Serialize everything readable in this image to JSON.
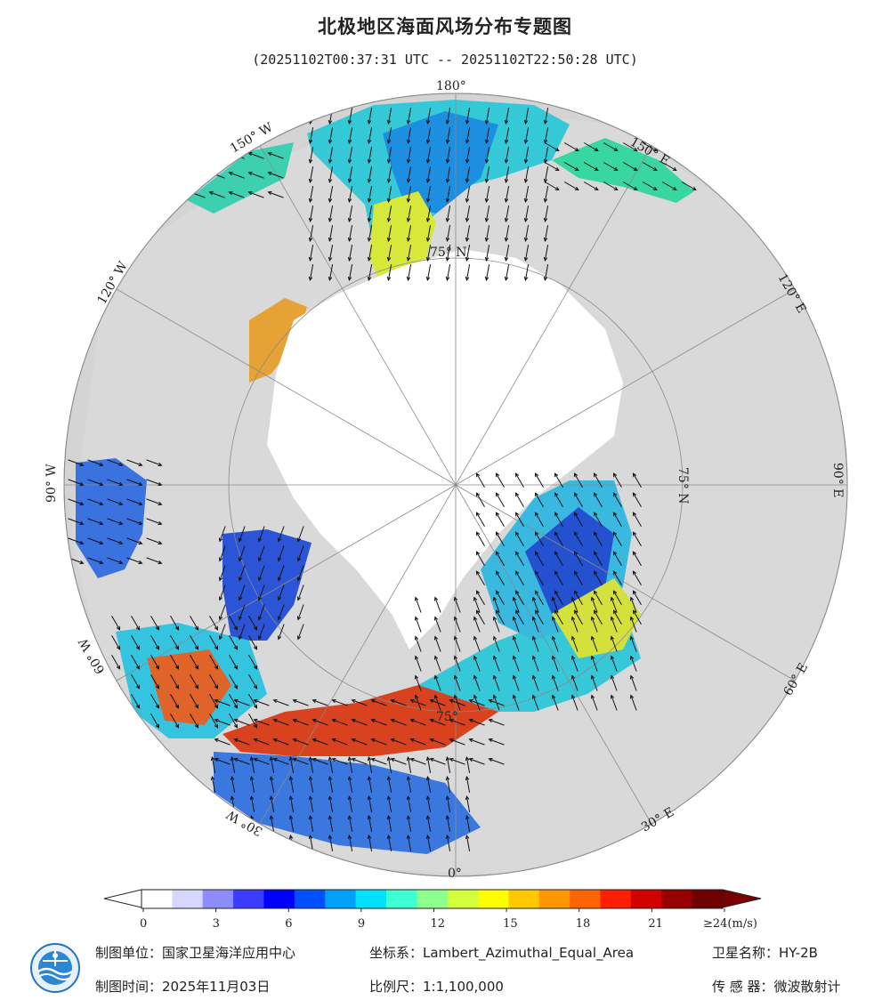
{
  "title": "北极地区海面风场分布专题图",
  "subtitle": "(20251102T00:37:31 UTC -- 20251102T22:50:28 UTC)",
  "map": {
    "projection": "Lambert_Azimuthal_Equal_Area",
    "colors": {
      "ocean_low": "#2d5fe0",
      "ocean_mid": "#35d0e0",
      "ocean_high": "#e8e23a",
      "wind_max": "#d8301a",
      "land": "#d9d9d9",
      "ice": "#ffffff",
      "arrow": "#111111"
    },
    "longitude_labels": {
      "lon_180": "180°",
      "lon_150w": "150° W",
      "lon_150e": "150° E",
      "lon_120w": "120° W",
      "lon_120e": "120° E",
      "lon_90w": "90° W",
      "lon_90e": "90° E",
      "lon_60w": "60° W",
      "lon_60e": "60° E",
      "lon_30w": "30° W",
      "lon_30e": "30° E",
      "lon_0": "0°"
    },
    "latitude_labels": {
      "lat_75n_top": "75° N",
      "lat_75n_right": "75° N",
      "lat_75_bottom": "75°"
    }
  },
  "colorbar": {
    "ticks": [
      "0",
      "3",
      "6",
      "9",
      "12",
      "15",
      "18",
      "21",
      "≥24(m/s)"
    ],
    "colors": [
      "#ffffff",
      "#d6d6ff",
      "#8c8cff",
      "#3c3cff",
      "#0000ff",
      "#0050ff",
      "#00a0ff",
      "#00e0ff",
      "#3cffd2",
      "#8cff8c",
      "#d2ff3c",
      "#ffff00",
      "#ffc800",
      "#ff9600",
      "#ff6400",
      "#ff1e00",
      "#d20000",
      "#960000",
      "#6e0000"
    ]
  },
  "footer": {
    "agency": "制图单位：国家卫星海洋应用中心",
    "coord": "坐标系：Lambert_Azimuthal_Equal_Area",
    "satellite": "卫星名称：HY-2B",
    "date": "制图时间：2025年11月03日",
    "scale": "比例尺：1:1,100,000",
    "sensor": "传 感 器：微波散射计"
  }
}
